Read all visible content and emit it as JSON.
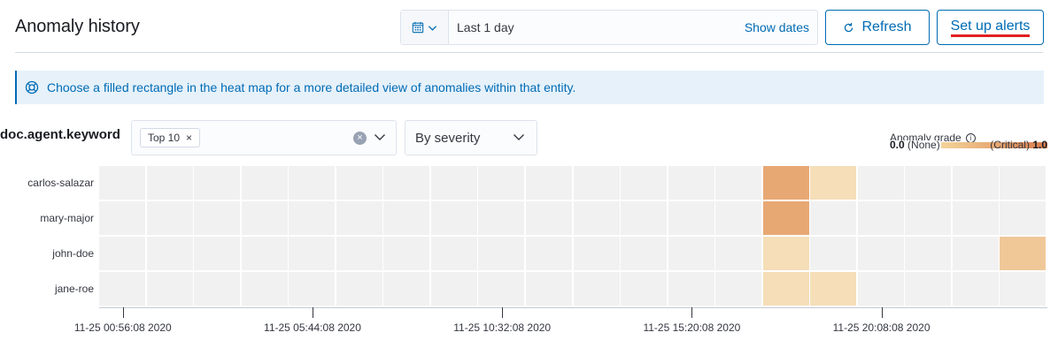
{
  "header": {
    "title": "Anomaly history",
    "date_range": "Last 1 day",
    "show_dates_label": "Show dates",
    "refresh_label": "Refresh",
    "setup_alerts_label": "Set up alerts"
  },
  "callout": {
    "text": "Choose a filled rectangle in the heat map for a more detailed view of anomalies within that entity."
  },
  "filters": {
    "field_label": "doc.agent.keyword",
    "selected_pill": "Top 10",
    "pill_remove": "×",
    "clear_symbol": "×",
    "sort_select": "By severity"
  },
  "legend": {
    "title": "Anomaly grade",
    "min_value": "0.0",
    "min_label": "(None)",
    "max_label": "(Critical)",
    "max_value": "1.0"
  },
  "heatmap": {
    "entities": [
      "carlos-salazar",
      "mary-major",
      "john-doe",
      "jane-roe"
    ],
    "column_count": 20,
    "empty_color": "#f1f1f1",
    "cells": [
      {
        "entity": 0,
        "column": 14,
        "color": "#e8a874"
      },
      {
        "entity": 0,
        "column": 15,
        "color": "#f5deb8"
      },
      {
        "entity": 1,
        "column": 14,
        "color": "#e8a874"
      },
      {
        "entity": 2,
        "column": 14,
        "color": "#f5deb8"
      },
      {
        "entity": 2,
        "column": 19,
        "color": "#f0c898"
      },
      {
        "entity": 3,
        "column": 14,
        "color": "#f5deb8"
      },
      {
        "entity": 3,
        "column": 15,
        "color": "#f5deb8"
      }
    ]
  },
  "x_axis": {
    "ticks": [
      {
        "label": "11-25 00:56:08 2020",
        "column_offset": 0.5
      },
      {
        "label": "11-25 05:44:08 2020",
        "column_offset": 4.5
      },
      {
        "label": "11-25 10:32:08 2020",
        "column_offset": 8.5
      },
      {
        "label": "11-25 15:20:08 2020",
        "column_offset": 12.5
      },
      {
        "label": "11-25 20:08:08 2020",
        "column_offset": 16.5
      }
    ]
  },
  "colors": {
    "accent": "#006bb4",
    "underline": "#e02020",
    "callout_bg": "#e6f1fa"
  },
  "icons": {
    "date_quick": "calendar-icon",
    "refresh": "refresh-icon",
    "callout": "help-lifebuoy-icon",
    "legend_info": "info-icon"
  }
}
